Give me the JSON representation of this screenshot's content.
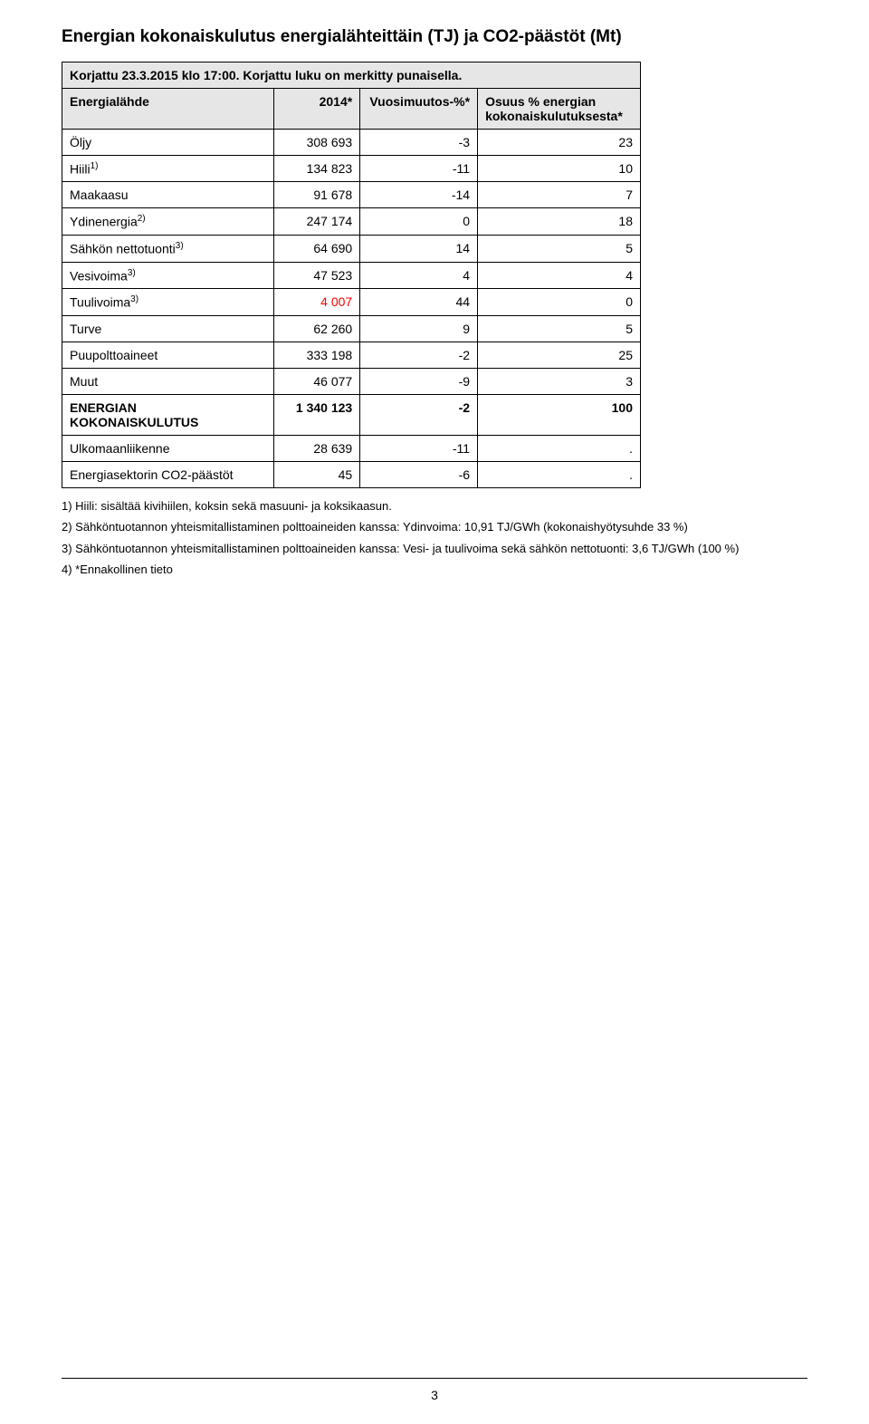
{
  "title": "Energian kokonaiskulutus energialähteittäin (TJ) ja CO2-päästöt (Mt)",
  "subtitle": "Korjattu 23.3.2015 klo 17:00. Korjattu luku on merkitty punaisella.",
  "table": {
    "header": {
      "col0": "Energialähde",
      "col1": "2014*",
      "col2": "Vuosimuutos-%*",
      "col3": "Osuus % energian kokonaiskulutuksesta*"
    },
    "rows": [
      {
        "label": "Öljy",
        "sup": "",
        "v": "308 693",
        "d": "-3",
        "s": "23",
        "bold": false,
        "red_v": false
      },
      {
        "label": "Hiili",
        "sup": "1)",
        "v": "134 823",
        "d": "-11",
        "s": "10",
        "bold": false,
        "red_v": false
      },
      {
        "label": "Maakaasu",
        "sup": "",
        "v": "91 678",
        "d": "-14",
        "s": "7",
        "bold": false,
        "red_v": false
      },
      {
        "label": "Ydinenergia",
        "sup": "2)",
        "v": "247 174",
        "d": "0",
        "s": "18",
        "bold": false,
        "red_v": false
      },
      {
        "label": "Sähkön nettotuonti",
        "sup": "3)",
        "v": "64 690",
        "d": "14",
        "s": "5",
        "bold": false,
        "red_v": false
      },
      {
        "label": "Vesivoima",
        "sup": "3)",
        "v": "47 523",
        "d": "4",
        "s": "4",
        "bold": false,
        "red_v": false
      },
      {
        "label": "Tuulivoima",
        "sup": "3)",
        "v": "4 007",
        "d": "44",
        "s": "0",
        "bold": false,
        "red_v": true
      },
      {
        "label": "Turve",
        "sup": "",
        "v": "62 260",
        "d": "9",
        "s": "5",
        "bold": false,
        "red_v": false
      },
      {
        "label": "Puupolttoaineet",
        "sup": "",
        "v": "333 198",
        "d": "-2",
        "s": "25",
        "bold": false,
        "red_v": false
      },
      {
        "label": "Muut",
        "sup": "",
        "v": "46 077",
        "d": "-9",
        "s": "3",
        "bold": false,
        "red_v": false
      },
      {
        "label": "ENERGIAN KOKONAISKULUTUS",
        "sup": "",
        "v": "1 340 123",
        "d": "-2",
        "s": "100",
        "bold": true,
        "red_v": false
      },
      {
        "label": "Ulkomaanliikenne",
        "sup": "",
        "v": "28 639",
        "d": "-11",
        "s": ".",
        "bold": false,
        "red_v": false
      },
      {
        "label": "Energiasektorin CO2-päästöt",
        "sup": "",
        "v": "45",
        "d": "-6",
        "s": ".",
        "bold": false,
        "red_v": false
      }
    ]
  },
  "footnotes": [
    "1) Hiili: sisältää kivihiilen, koksin sekä masuuni- ja koksikaasun.",
    "2) Sähköntuotannon yhteismitallistaminen polttoaineiden kanssa: Ydinvoima: 10,91 TJ/GWh (kokonaishyötysuhde 33 %)",
    "3) Sähköntuotannon yhteismitallistaminen polttoaineiden kanssa: Vesi- ja tuulivoima sekä sähkön nettotuonti: 3,6 TJ/GWh (100 %)",
    "4) *Ennakollinen tieto"
  ],
  "page_number": "3",
  "colors": {
    "header_bg": "#e6e6e6",
    "border": "#000000",
    "text": "#000000",
    "background": "#ffffff",
    "highlight": "#ff0000"
  }
}
